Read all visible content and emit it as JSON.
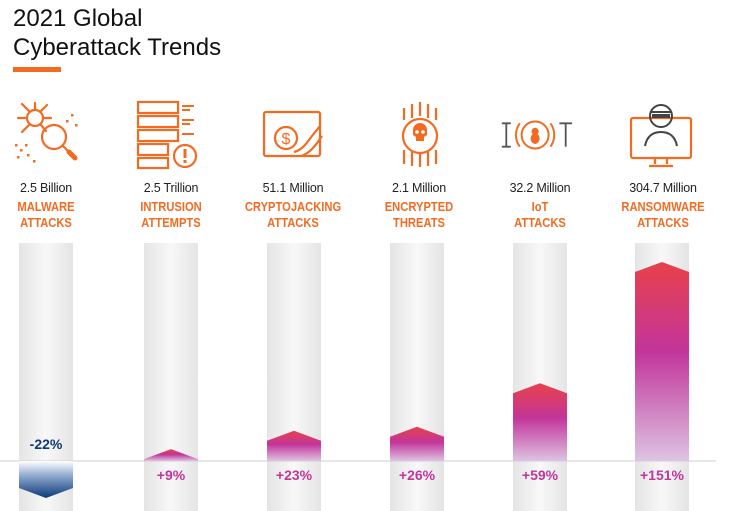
{
  "title_line1": "2021 Global",
  "title_line2": "Cyberattack Trends",
  "colors": {
    "accent": "#f26b21",
    "positive": "#c2359a",
    "negative": "#0b3a78",
    "track": "#eeeeee"
  },
  "categories": [
    {
      "value": "2.5 Billion",
      "label1": "MALWARE",
      "label2": "ATTACKS",
      "icon": "malware-bug-magnifier-icon"
    },
    {
      "value": "2.5 Trillion",
      "label1": "INTRUSION",
      "label2": "ATTEMPTS",
      "icon": "server-alert-icon"
    },
    {
      "value": "51.1 Million",
      "label1": "CRYPTOJACKING",
      "label2": "ATTACKS",
      "icon": "crypto-hand-coin-icon"
    },
    {
      "value": "2.1 Million",
      "label1": "ENCRYPTED",
      "label2": "THREATS",
      "icon": "skull-circuit-icon"
    },
    {
      "value": "32.2 Million",
      "label1": "IoT",
      "label2": "ATTACKS",
      "icon": "iot-bug-icon"
    },
    {
      "value": "304.7 Million",
      "label1": "RANSOMWARE",
      "label2": "ATTACKS",
      "icon": "hacker-monitor-icon"
    }
  ],
  "chart_data": {
    "type": "bar",
    "categories": [
      "MALWARE ATTACKS",
      "INTRUSION ATTEMPTS",
      "CRYPTOJACKING ATTACKS",
      "ENCRYPTED THREATS",
      "IoT ATTACKS",
      "RANSOMWARE ATTACKS"
    ],
    "values": [
      -22,
      9,
      23,
      26,
      59,
      151
    ],
    "value_labels": [
      "-22%",
      "+9%",
      "+23%",
      "+26%",
      "+59%",
      "+151%"
    ],
    "unit": "%",
    "baseline": 0,
    "ylim": [
      -22,
      151
    ]
  }
}
